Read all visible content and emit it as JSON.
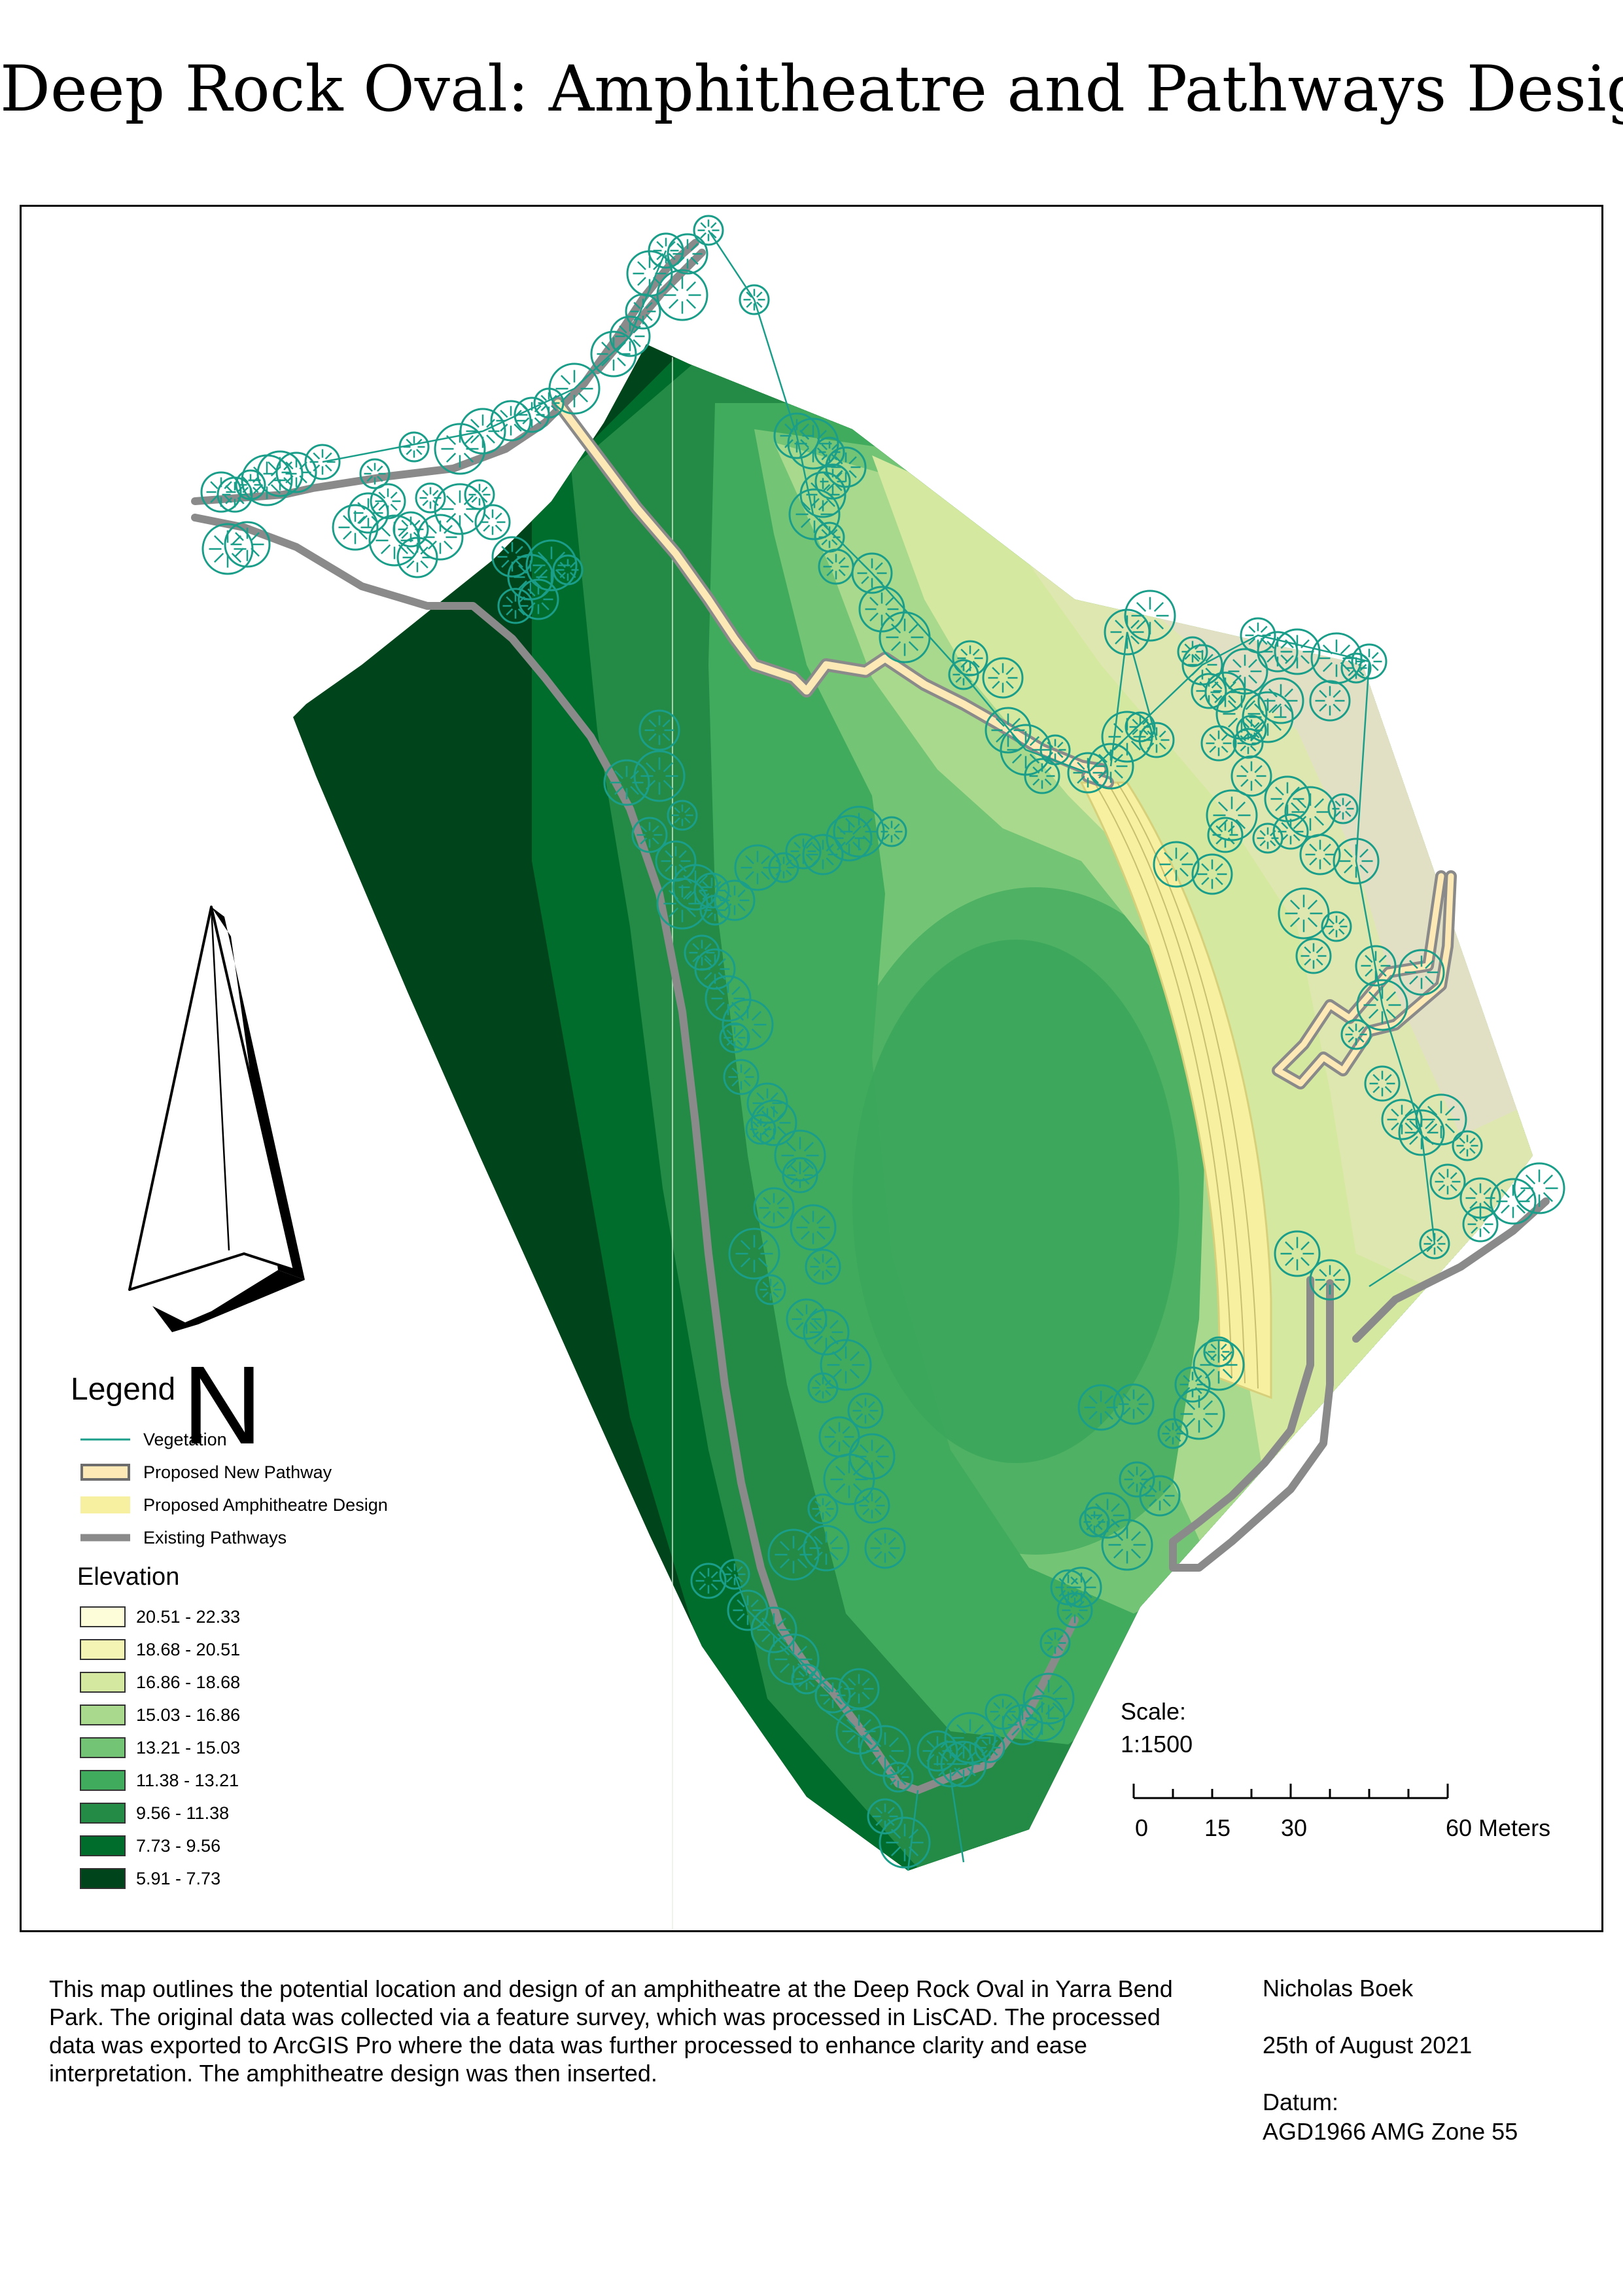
{
  "title": "Deep Rock Oval: Amphitheatre and Pathways Design",
  "legend": {
    "title": "Legend",
    "items": [
      {
        "label": "Vegetation",
        "color": "#1a9e8a",
        "kind": "line"
      },
      {
        "label": "Proposed New Pathway",
        "color": "#fde9b5",
        "outline": "#8a8a8a",
        "kind": "band"
      },
      {
        "label": "Proposed Amphitheatre Design",
        "color": "#f6f0a0",
        "kind": "fill"
      },
      {
        "label": "Existing Pathways",
        "color": "#8a8a8a",
        "kind": "thick"
      }
    ],
    "elevation_title": "Elevation",
    "elevation": [
      {
        "label": "20.51 - 22.33",
        "color": "#fefdd9"
      },
      {
        "label": "18.68 - 20.51",
        "color": "#f4f5b4"
      },
      {
        "label": "16.86 - 18.68",
        "color": "#d4e8a0"
      },
      {
        "label": "15.03 - 16.86",
        "color": "#a8d98c"
      },
      {
        "label": "13.21 - 15.03",
        "color": "#74c476"
      },
      {
        "label": "11.38 - 13.21",
        "color": "#41ab5d"
      },
      {
        "label": "9.56 - 11.38",
        "color": "#238b45"
      },
      {
        "label": "7.73 - 9.56",
        "color": "#006d2c"
      },
      {
        "label": "5.91 - 7.73",
        "color": "#00441b"
      }
    ]
  },
  "north_arrow": {
    "label": "N"
  },
  "scale": {
    "label": "Scale:",
    "ratio": "1:1500",
    "ticks": [
      "0",
      "15",
      "30",
      "60 Meters"
    ]
  },
  "description": "This map outlines the potential location and design of an amphitheatre at the Deep Rock Oval in Yarra Bend Park. The original data was collected via a feature survey, which was processed in LisCAD. The processed data was exported to ArcGIS Pro where the data was further processed to enhance clarity and ease interpretation. The amphitheatre design was then inserted.",
  "author": "Nicholas Boek",
  "date": "25th of August 2021",
  "datum": {
    "label": "Datum:",
    "value": "AGD1966 AMG Zone 55"
  },
  "trees": [
    [
      1050,
      36
    ],
    [
      985,
      67
    ],
    [
      1018,
      72
    ],
    [
      960,
      102
    ],
    [
      1010,
      135
    ],
    [
      1120,
      142
    ],
    [
      950,
      160
    ],
    [
      930,
      198
    ],
    [
      905,
      225
    ],
    [
      845,
      278
    ],
    [
      806,
      300
    ],
    [
      780,
      318
    ],
    [
      748,
      327
    ],
    [
      705,
      343
    ],
    [
      670,
      370
    ],
    [
      600,
      367
    ],
    [
      460,
      390
    ],
    [
      420,
      406
    ],
    [
      395,
      408
    ],
    [
      375,
      418
    ],
    [
      350,
      425
    ],
    [
      326,
      440
    ],
    [
      305,
      436
    ],
    [
      345,
      516
    ],
    [
      315,
      523
    ],
    [
      540,
      408
    ],
    [
      560,
      450
    ],
    [
      530,
      468
    ],
    [
      510,
      490
    ],
    [
      570,
      510
    ],
    [
      625,
      445
    ],
    [
      595,
      493
    ],
    [
      605,
      536
    ],
    [
      640,
      505
    ],
    [
      670,
      462
    ],
    [
      700,
      440
    ],
    [
      720,
      482
    ],
    [
      750,
      535
    ],
    [
      778,
      566
    ],
    [
      810,
      548
    ],
    [
      835,
      555
    ],
    [
      755,
      610
    ],
    [
      790,
      600
    ],
    [
      1185,
      350
    ],
    [
      1210,
      362
    ],
    [
      1235,
      375
    ],
    [
      1240,
      420
    ],
    [
      1260,
      398
    ],
    [
      1225,
      440
    ],
    [
      1212,
      470
    ],
    [
      1235,
      505
    ],
    [
      1245,
      550
    ],
    [
      1300,
      560
    ],
    [
      1315,
      615
    ],
    [
      1350,
      658
    ],
    [
      1440,
      715
    ],
    [
      1450,
      690
    ],
    [
      1500,
      720
    ],
    [
      1508,
      800
    ],
    [
      1535,
      830
    ],
    [
      1580,
      830
    ],
    [
      1560,
      870
    ],
    [
      1630,
      865
    ],
    [
      1665,
      855
    ],
    [
      1690,
      810
    ],
    [
      1710,
      795
    ],
    [
      1735,
      815
    ],
    [
      1805,
      700
    ],
    [
      1690,
      650
    ],
    [
      1725,
      625
    ],
    [
      1790,
      680
    ],
    [
      1815,
      740
    ],
    [
      1840,
      742
    ],
    [
      1870,
      710
    ],
    [
      1865,
      775
    ],
    [
      1880,
      800
    ],
    [
      1890,
      655
    ],
    [
      1920,
      680
    ],
    [
      1950,
      680
    ],
    [
      2010,
      690
    ],
    [
      2040,
      705
    ],
    [
      2060,
      695
    ],
    [
      2000,
      755
    ],
    [
      1925,
      755
    ],
    [
      1905,
      780
    ],
    [
      1875,
      820
    ],
    [
      1830,
      820
    ],
    [
      1880,
      870
    ],
    [
      1935,
      905
    ],
    [
      1970,
      925
    ],
    [
      2020,
      920
    ],
    [
      1940,
      955
    ],
    [
      1985,
      990
    ],
    [
      2040,
      1000
    ],
    [
      1850,
      930
    ],
    [
      1905,
      965
    ],
    [
      1840,
      960
    ],
    [
      1820,
      1020
    ],
    [
      1765,
      1005
    ],
    [
      1960,
      1080
    ],
    [
      2010,
      1100
    ],
    [
      1975,
      1145
    ],
    [
      2070,
      1160
    ],
    [
      2140,
      1170
    ],
    [
      2080,
      1220
    ],
    [
      2040,
      1265
    ],
    [
      2080,
      1340
    ],
    [
      2110,
      1395
    ],
    [
      2140,
      1415
    ],
    [
      2170,
      1395
    ],
    [
      2210,
      1435
    ],
    [
      2180,
      1490
    ],
    [
      2230,
      1515
    ],
    [
      2280,
      1520
    ],
    [
      2320,
      1500
    ],
    [
      2160,
      1585
    ],
    [
      2230,
      1555
    ],
    [
      2000,
      1640
    ],
    [
      1950,
      1600
    ],
    [
      1830,
      1770
    ],
    [
      1830,
      1750
    ],
    [
      1790,
      1800
    ],
    [
      1700,
      1830
    ],
    [
      1650,
      1835
    ],
    [
      1800,
      1845
    ],
    [
      1760,
      1875
    ],
    [
      1705,
      1945
    ],
    [
      1740,
      1970
    ],
    [
      1660,
      2000
    ],
    [
      1690,
      2045
    ],
    [
      1640,
      2010
    ],
    [
      1600,
      2110
    ],
    [
      975,
      800
    ],
    [
      925,
      880
    ],
    [
      975,
      870
    ],
    [
      1010,
      930
    ],
    [
      960,
      960
    ],
    [
      1000,
      1000
    ],
    [
      1030,
      1040
    ],
    [
      1010,
      1065
    ],
    [
      1060,
      1075
    ],
    [
      1040,
      1140
    ],
    [
      1060,
      1165
    ],
    [
      1080,
      1210
    ],
    [
      1110,
      1250
    ],
    [
      1090,
      1270
    ],
    [
      1100,
      1330
    ],
    [
      1140,
      1370
    ],
    [
      1150,
      1400
    ],
    [
      1190,
      1450
    ],
    [
      1130,
      1410
    ],
    [
      1190,
      1480
    ],
    [
      1150,
      1530
    ],
    [
      1210,
      1560
    ],
    [
      1120,
      1600
    ],
    [
      1145,
      1655
    ],
    [
      1225,
      1620
    ],
    [
      1200,
      1700
    ],
    [
      1230,
      1720
    ],
    [
      1260,
      1770
    ],
    [
      1225,
      1805
    ],
    [
      1290,
      1840
    ],
    [
      1250,
      1880
    ],
    [
      1300,
      1910
    ],
    [
      1265,
      1945
    ],
    [
      1225,
      1990
    ],
    [
      1300,
      1985
    ],
    [
      1320,
      2050
    ],
    [
      1230,
      2050
    ],
    [
      1180,
      2060
    ],
    [
      1090,
      2090
    ],
    [
      1050,
      2100
    ],
    [
      1110,
      2145
    ],
    [
      1150,
      2175
    ],
    [
      1180,
      2220
    ],
    [
      1200,
      2250
    ],
    [
      1240,
      2275
    ],
    [
      1280,
      2265
    ],
    [
      1280,
      2330
    ],
    [
      1320,
      2360
    ],
    [
      1340,
      2400
    ],
    [
      1320,
      2460
    ],
    [
      1400,
      2360
    ],
    [
      1420,
      2380
    ],
    [
      1450,
      2340
    ],
    [
      1480,
      2355
    ],
    [
      1500,
      2300
    ],
    [
      1530,
      2320
    ],
    [
      1560,
      2310
    ],
    [
      1570,
      2280
    ],
    [
      1580,
      2195
    ],
    [
      1610,
      2145
    ],
    [
      1620,
      2110
    ],
    [
      1440,
      2380
    ],
    [
      1350,
      2500
    ],
    [
      1165,
      1010
    ],
    [
      1195,
      985
    ],
    [
      1225,
      990
    ],
    [
      1265,
      965
    ],
    [
      1280,
      955
    ],
    [
      1330,
      955
    ],
    [
      1055,
      1045
    ],
    [
      1090,
      1060
    ],
    [
      1125,
      1010
    ]
  ]
}
